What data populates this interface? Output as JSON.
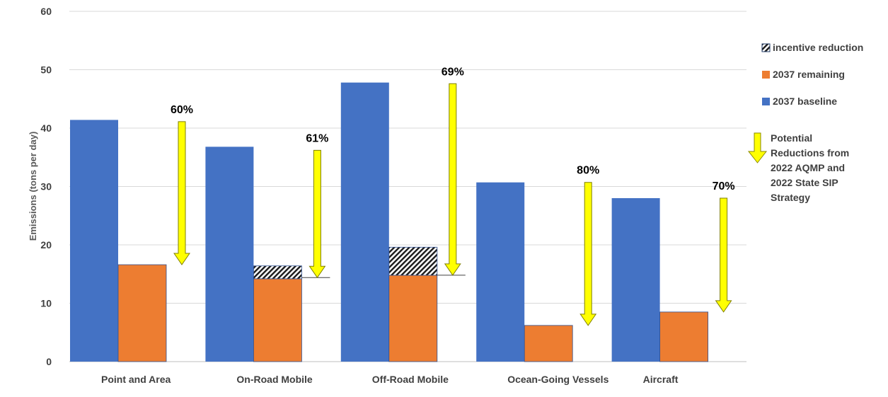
{
  "chart_data": {
    "type": "bar",
    "categories": [
      "Point and Area",
      "On-Road Mobile",
      "Off-Road Mobile",
      "Ocean-Going Vessels",
      "Aircraft"
    ],
    "ylabel": "Emissions (tons per day)",
    "xlabel": "",
    "ylim": [
      0,
      60
    ],
    "yticks": [
      0,
      10,
      20,
      30,
      40,
      50,
      60
    ],
    "grid": true,
    "legend_position": "right",
    "series": [
      {
        "name": "2037 baseline",
        "color": "#4472C4",
        "values": [
          41.4,
          36.8,
          47.8,
          30.7,
          28.0
        ]
      },
      {
        "name": "2037 remaining",
        "color": "#ED7D31",
        "values": [
          16.6,
          14.2,
          14.8,
          6.2,
          8.5
        ]
      },
      {
        "name": "incentive reduction",
        "pattern": "diagonal-hatch",
        "values": [
          0,
          2.2,
          4.8,
          0,
          0
        ],
        "stacked_on": "2037 remaining"
      }
    ],
    "reductions": {
      "legend_label": "Potential Reductions from 2022 AQMP and 2022 State SIP Strategy",
      "color": "#FFFF00",
      "labels": [
        "60%",
        "61%",
        "69%",
        "80%",
        "70%"
      ],
      "from": [
        41.1,
        36.2,
        47.6,
        30.7,
        28.0
      ],
      "to": [
        16.6,
        14.4,
        14.8,
        6.2,
        8.5
      ]
    }
  }
}
